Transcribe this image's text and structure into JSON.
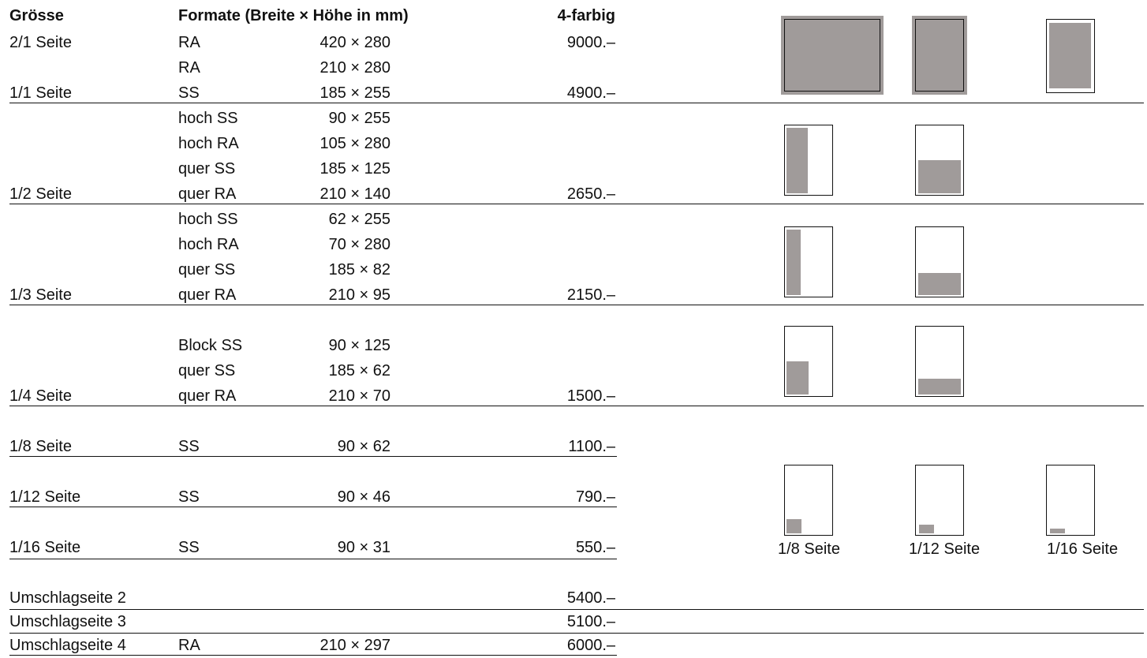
{
  "header": {
    "size": "Grösse",
    "formats": "Formate (Breite × Höhe in mm)",
    "color": "4-farbig"
  },
  "rows": [
    {
      "size": "2/1 Seite",
      "kind": "RA",
      "dims": "420 × 280",
      "price": "9000.–"
    },
    {
      "size": "",
      "kind": "RA",
      "dims": "210 × 280",
      "price": ""
    },
    {
      "size": "1/1 Seite",
      "kind": "SS",
      "dims": "185 × 255",
      "price": "4900.–"
    },
    {
      "size": "",
      "kind": "hoch SS",
      "dims": "90 × 255",
      "price": ""
    },
    {
      "size": "",
      "kind": "hoch RA",
      "dims": "105 × 280",
      "price": ""
    },
    {
      "size": "",
      "kind": "quer SS",
      "dims": "185 × 125",
      "price": ""
    },
    {
      "size": "1/2 Seite",
      "kind": "quer RA",
      "dims": "210 × 140",
      "price": "2650.–"
    },
    {
      "size": "",
      "kind": "hoch SS",
      "dims": "62 × 255",
      "price": ""
    },
    {
      "size": "",
      "kind": "hoch RA",
      "dims": "70 × 280",
      "price": ""
    },
    {
      "size": "",
      "kind": "quer SS",
      "dims": "185 × 82",
      "price": ""
    },
    {
      "size": "1/3 Seite",
      "kind": "quer RA",
      "dims": "210 × 95",
      "price": "2150.–"
    },
    {
      "size": "",
      "kind": "Block SS",
      "dims": "90 × 125",
      "price": ""
    },
    {
      "size": "",
      "kind": "quer SS",
      "dims": "185 × 62",
      "price": ""
    },
    {
      "size": "1/4 Seite",
      "kind": "quer RA",
      "dims": "210 × 70",
      "price": "1500.–"
    },
    {
      "size": "1/8 Seite",
      "kind": "SS",
      "dims": "90 × 62",
      "price": "1100.–"
    },
    {
      "size": "1/12 Seite",
      "kind": "SS",
      "dims": "90 × 46",
      "price": "790.–"
    },
    {
      "size": "1/16 Seite",
      "kind": "SS",
      "dims": "90 × 31",
      "price": "550.–"
    },
    {
      "size": "Umschlagseite 2",
      "kind": "",
      "dims": "",
      "price": "5400.–"
    },
    {
      "size": "Umschlagseite 3",
      "kind": "",
      "dims": "",
      "price": "5100.–"
    },
    {
      "size": "Umschlagseite 4",
      "kind": "RA",
      "dims": "210 × 297",
      "price": "6000.–"
    }
  ],
  "captions": {
    "eighth": "1/8 Seite",
    "twelfth": "1/12 Seite",
    "sixteenth": "1/16 Seite"
  },
  "colors": {
    "text": "#111111",
    "fill": "#a09b9a"
  }
}
